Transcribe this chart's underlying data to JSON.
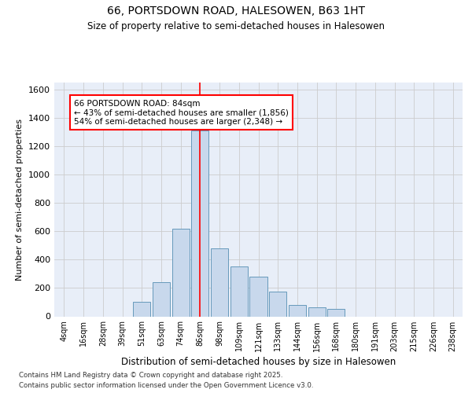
{
  "title": "66, PORTSDOWN ROAD, HALESOWEN, B63 1HT",
  "subtitle": "Size of property relative to semi-detached houses in Halesowen",
  "xlabel": "Distribution of semi-detached houses by size in Halesowen",
  "ylabel": "Number of semi-detached properties",
  "bar_categories": [
    "4sqm",
    "16sqm",
    "28sqm",
    "39sqm",
    "51sqm",
    "63sqm",
    "74sqm",
    "86sqm",
    "98sqm",
    "109sqm",
    "121sqm",
    "133sqm",
    "144sqm",
    "156sqm",
    "168sqm",
    "180sqm",
    "191sqm",
    "203sqm",
    "215sqm",
    "226sqm",
    "238sqm"
  ],
  "bar_values": [
    0,
    0,
    0,
    0,
    100,
    240,
    620,
    1310,
    480,
    350,
    280,
    175,
    80,
    65,
    50,
    0,
    0,
    0,
    0,
    0,
    0
  ],
  "bar_color": "#c8d8ec",
  "bar_edge_color": "#6699bb",
  "annotation_title": "66 PORTSDOWN ROAD: 84sqm",
  "annotation_line1": "← 43% of semi-detached houses are smaller (1,856)",
  "annotation_line2": "54% of semi-detached houses are larger (2,348) →",
  "ylim": [
    0,
    1650
  ],
  "yticks": [
    0,
    200,
    400,
    600,
    800,
    1000,
    1200,
    1400,
    1600
  ],
  "grid_color": "#cccccc",
  "background_color": "#e8eef8",
  "footer1": "Contains HM Land Registry data © Crown copyright and database right 2025.",
  "footer2": "Contains public sector information licensed under the Open Government Licence v3.0."
}
